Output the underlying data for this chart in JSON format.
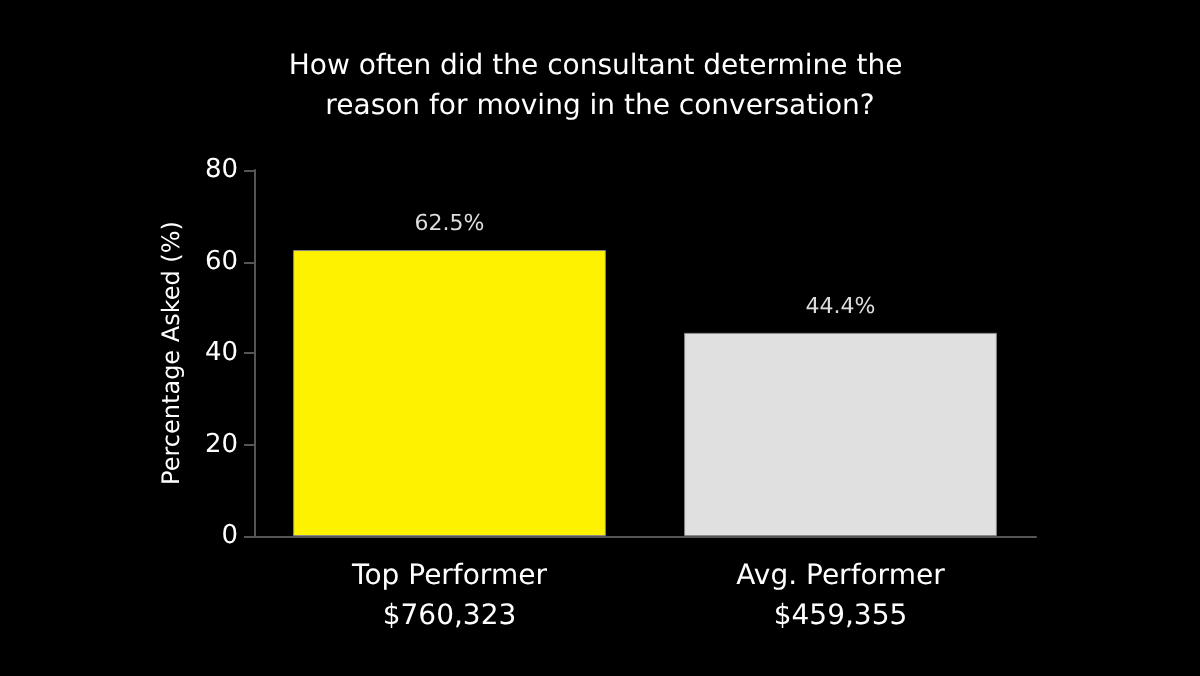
{
  "chart_data": {
    "type": "bar",
    "title": "How often did the consultant determine the reason for moving in the conversation?",
    "ylabel": "Percentage Asked (%)",
    "categories": [
      "Top Performer\n$760,323",
      "Avg. Performer\n$459,355"
    ],
    "values": [
      62.5,
      44.4
    ],
    "colors": [
      "#fff200",
      "#e0e0e0"
    ],
    "value_labels": [
      "62.5%",
      "44.4%"
    ],
    "ylim": [
      0,
      80
    ],
    "yticks": [
      0,
      20,
      40,
      60,
      80
    ],
    "grid": false
  }
}
